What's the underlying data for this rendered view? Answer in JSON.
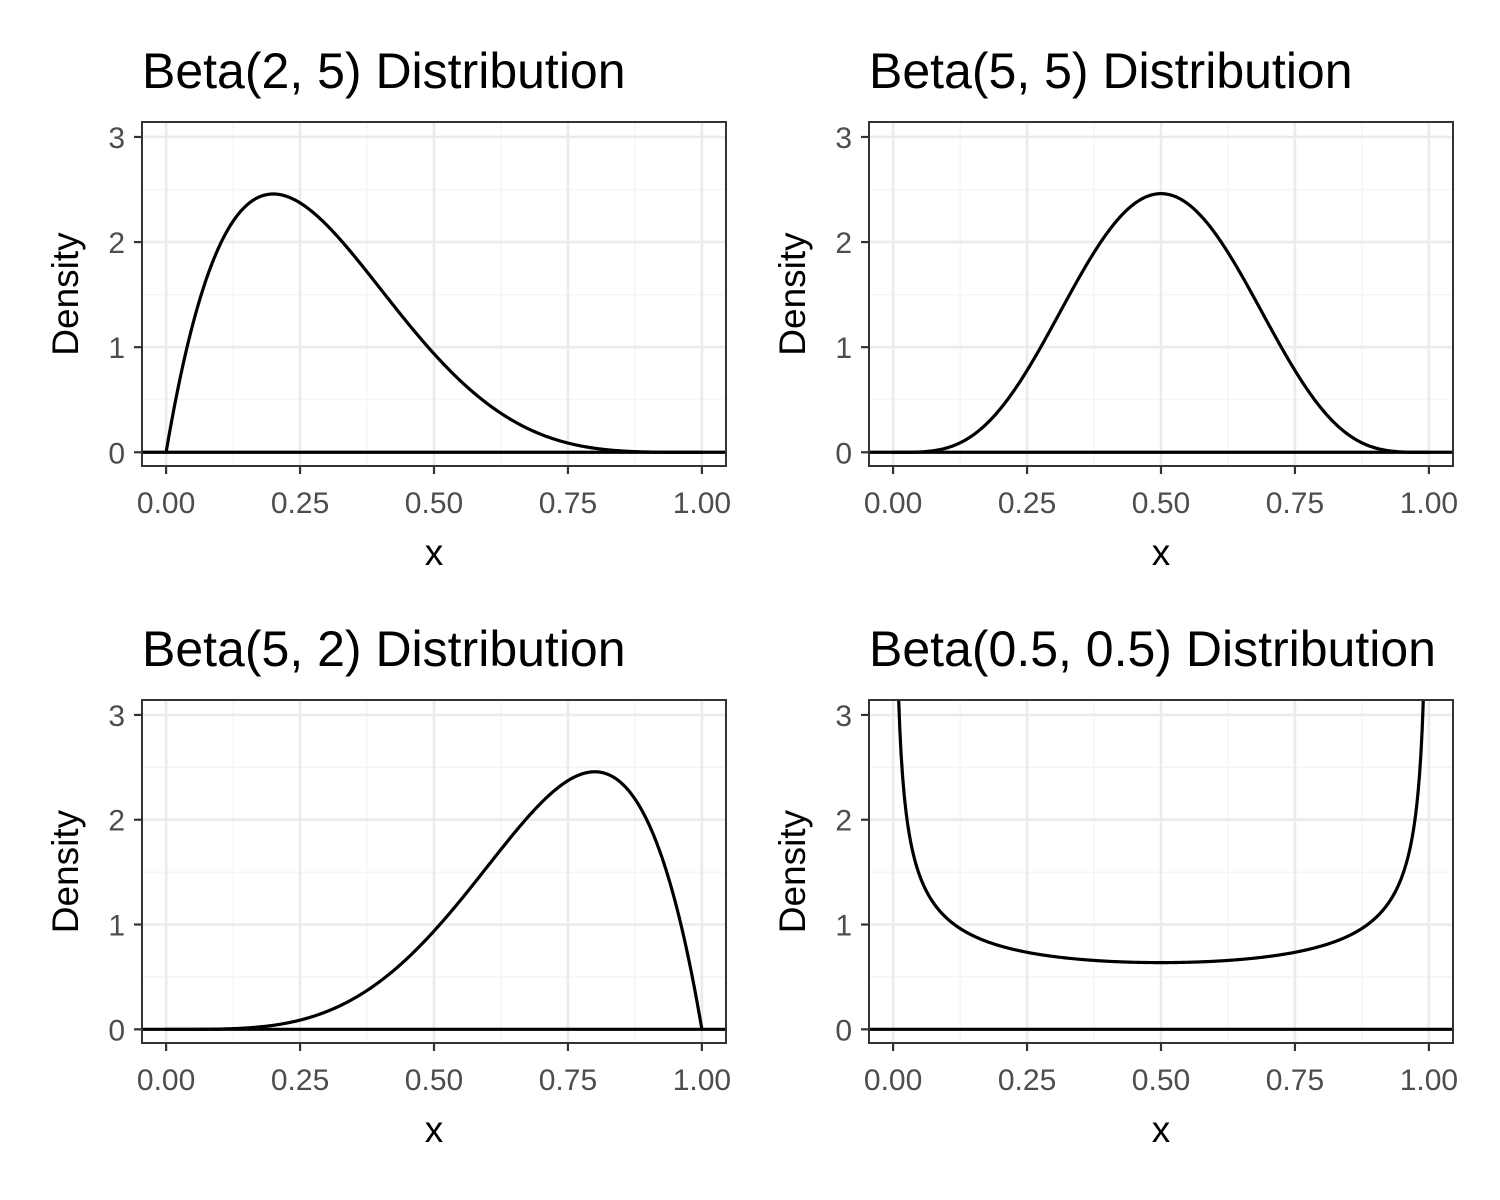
{
  "chart_data": [
    {
      "type": "line",
      "title": "Beta(2, 5) Distribution",
      "xlabel": "x",
      "ylabel": "Density",
      "alpha": 2,
      "beta": 5,
      "xlim": [
        0,
        1
      ],
      "ylim": [
        0,
        3
      ],
      "x_ticks": [
        "0.00",
        "0.25",
        "0.50",
        "0.75",
        "1.00"
      ],
      "y_ticks": [
        "0",
        "1",
        "2",
        "3"
      ],
      "reference_line_y": 0,
      "grid": true,
      "legend": "none",
      "series": [
        {
          "x": [
            0.0,
            0.1,
            0.2,
            0.3,
            0.4,
            0.5,
            0.6,
            0.7,
            0.8,
            0.9,
            1.0
          ],
          "y": [
            0.0,
            1.968,
            2.458,
            2.161,
            1.555,
            0.938,
            0.461,
            0.17,
            0.038,
            0.003,
            0.0
          ]
        }
      ]
    },
    {
      "type": "line",
      "title": "Beta(5, 5) Distribution",
      "xlabel": "x",
      "ylabel": "Density",
      "alpha": 5,
      "beta": 5,
      "xlim": [
        0,
        1
      ],
      "ylim": [
        0,
        3
      ],
      "x_ticks": [
        "0.00",
        "0.25",
        "0.50",
        "0.75",
        "1.00"
      ],
      "y_ticks": [
        "0",
        "1",
        "2",
        "3"
      ],
      "reference_line_y": 0,
      "grid": true,
      "legend": "none",
      "series": [
        {
          "x": [
            0.0,
            0.1,
            0.2,
            0.3,
            0.4,
            0.5,
            0.6,
            0.7,
            0.8,
            0.9,
            1.0
          ],
          "y": [
            0.0,
            0.042,
            0.516,
            1.524,
            2.322,
            2.461,
            2.322,
            1.524,
            0.516,
            0.042,
            0.0
          ]
        }
      ]
    },
    {
      "type": "line",
      "title": "Beta(5, 2) Distribution",
      "xlabel": "x",
      "ylabel": "Density",
      "alpha": 5,
      "beta": 2,
      "xlim": [
        0,
        1
      ],
      "ylim": [
        0,
        3
      ],
      "x_ticks": [
        "0.00",
        "0.25",
        "0.50",
        "0.75",
        "1.00"
      ],
      "y_ticks": [
        "0",
        "1",
        "2",
        "3"
      ],
      "reference_line_y": 0,
      "grid": true,
      "legend": "none",
      "series": [
        {
          "x": [
            0.0,
            0.1,
            0.2,
            0.3,
            0.4,
            0.5,
            0.6,
            0.7,
            0.8,
            0.9,
            1.0
          ],
          "y": [
            0.0,
            0.003,
            0.038,
            0.17,
            0.461,
            0.938,
            1.555,
            2.161,
            2.458,
            1.968,
            0.0
          ]
        }
      ]
    },
    {
      "type": "line",
      "title": "Beta(0.5, 0.5) Distribution",
      "xlabel": "x",
      "ylabel": "Density",
      "alpha": 0.5,
      "beta": 0.5,
      "xlim": [
        0,
        1
      ],
      "ylim": [
        0,
        3
      ],
      "x_ticks": [
        "0.00",
        "0.25",
        "0.50",
        "0.75",
        "1.00"
      ],
      "y_ticks": [
        "0",
        "1",
        "2",
        "3"
      ],
      "reference_line_y": 0,
      "grid": true,
      "legend": "none",
      "series": [
        {
          "x": [
            0.01,
            0.05,
            0.1,
            0.2,
            0.3,
            0.4,
            0.5,
            0.6,
            0.7,
            0.8,
            0.9,
            0.95,
            0.99
          ],
          "y": [
            3.199,
            1.46,
            1.061,
            0.796,
            0.695,
            0.65,
            0.637,
            0.65,
            0.695,
            0.796,
            1.061,
            1.46,
            3.199
          ]
        }
      ]
    }
  ]
}
